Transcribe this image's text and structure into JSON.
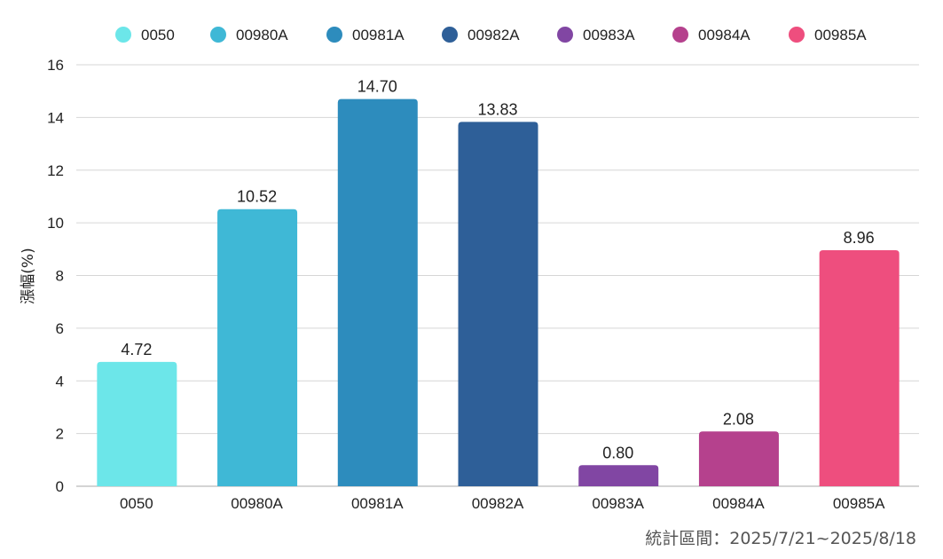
{
  "chart_data": {
    "type": "bar",
    "title": "",
    "xlabel": "",
    "ylabel": "漲幅(%)",
    "ylim": [
      0,
      16
    ],
    "yticks": [
      "0",
      "2",
      "4",
      "6",
      "8",
      "10",
      "12",
      "14",
      "16"
    ],
    "grid": true,
    "legend_position": "top",
    "categories": [
      "0050",
      "00980A",
      "00981A",
      "00982A",
      "00983A",
      "00984A",
      "00985A"
    ],
    "values": [
      4.72,
      10.52,
      14.7,
      13.83,
      0.8,
      2.08,
      8.96
    ],
    "value_labels": [
      "4.72",
      "10.52",
      "14.70",
      "13.83",
      "0.80",
      "2.08",
      "8.96"
    ],
    "colors": [
      "#6ce6e9",
      "#3fb8d6",
      "#2d8cbd",
      "#2e5f98",
      "#8146a3",
      "#b5418d",
      "#ee4e7e"
    ]
  },
  "footnote": "統計區間：2025/7/21~2025/8/18"
}
